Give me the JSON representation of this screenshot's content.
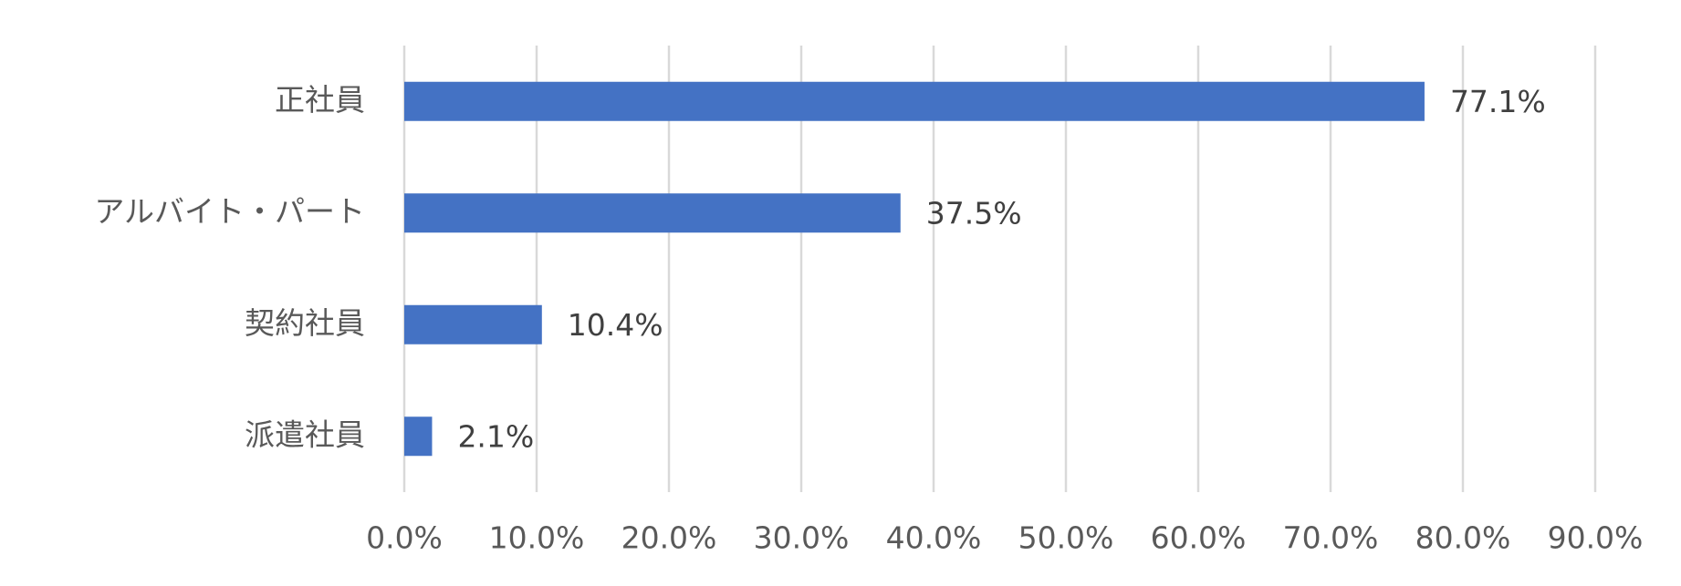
{
  "chart_data": {
    "type": "bar",
    "orientation": "horizontal",
    "categories": [
      "正社員",
      "アルバイト・パート",
      "契約社員",
      "派遣社員"
    ],
    "values": [
      77.1,
      37.5,
      10.4,
      2.1
    ],
    "value_labels": [
      "77.1%",
      "37.5%",
      "10.4%",
      "2.1%"
    ],
    "color": "#4472c4",
    "xlim": [
      0,
      90
    ],
    "xticks": [
      {
        "value": 0,
        "label": "0.0%"
      },
      {
        "value": 10,
        "label": "10.0%"
      },
      {
        "value": 20,
        "label": "20.0%"
      },
      {
        "value": 30,
        "label": "30.0%"
      },
      {
        "value": 40,
        "label": "40.0%"
      },
      {
        "value": 50,
        "label": "50.0%"
      },
      {
        "value": 60,
        "label": "60.0%"
      },
      {
        "value": 70,
        "label": "70.0%"
      },
      {
        "value": 80,
        "label": "80.0%"
      },
      {
        "value": 90,
        "label": "90.0%"
      }
    ],
    "grid": true
  }
}
